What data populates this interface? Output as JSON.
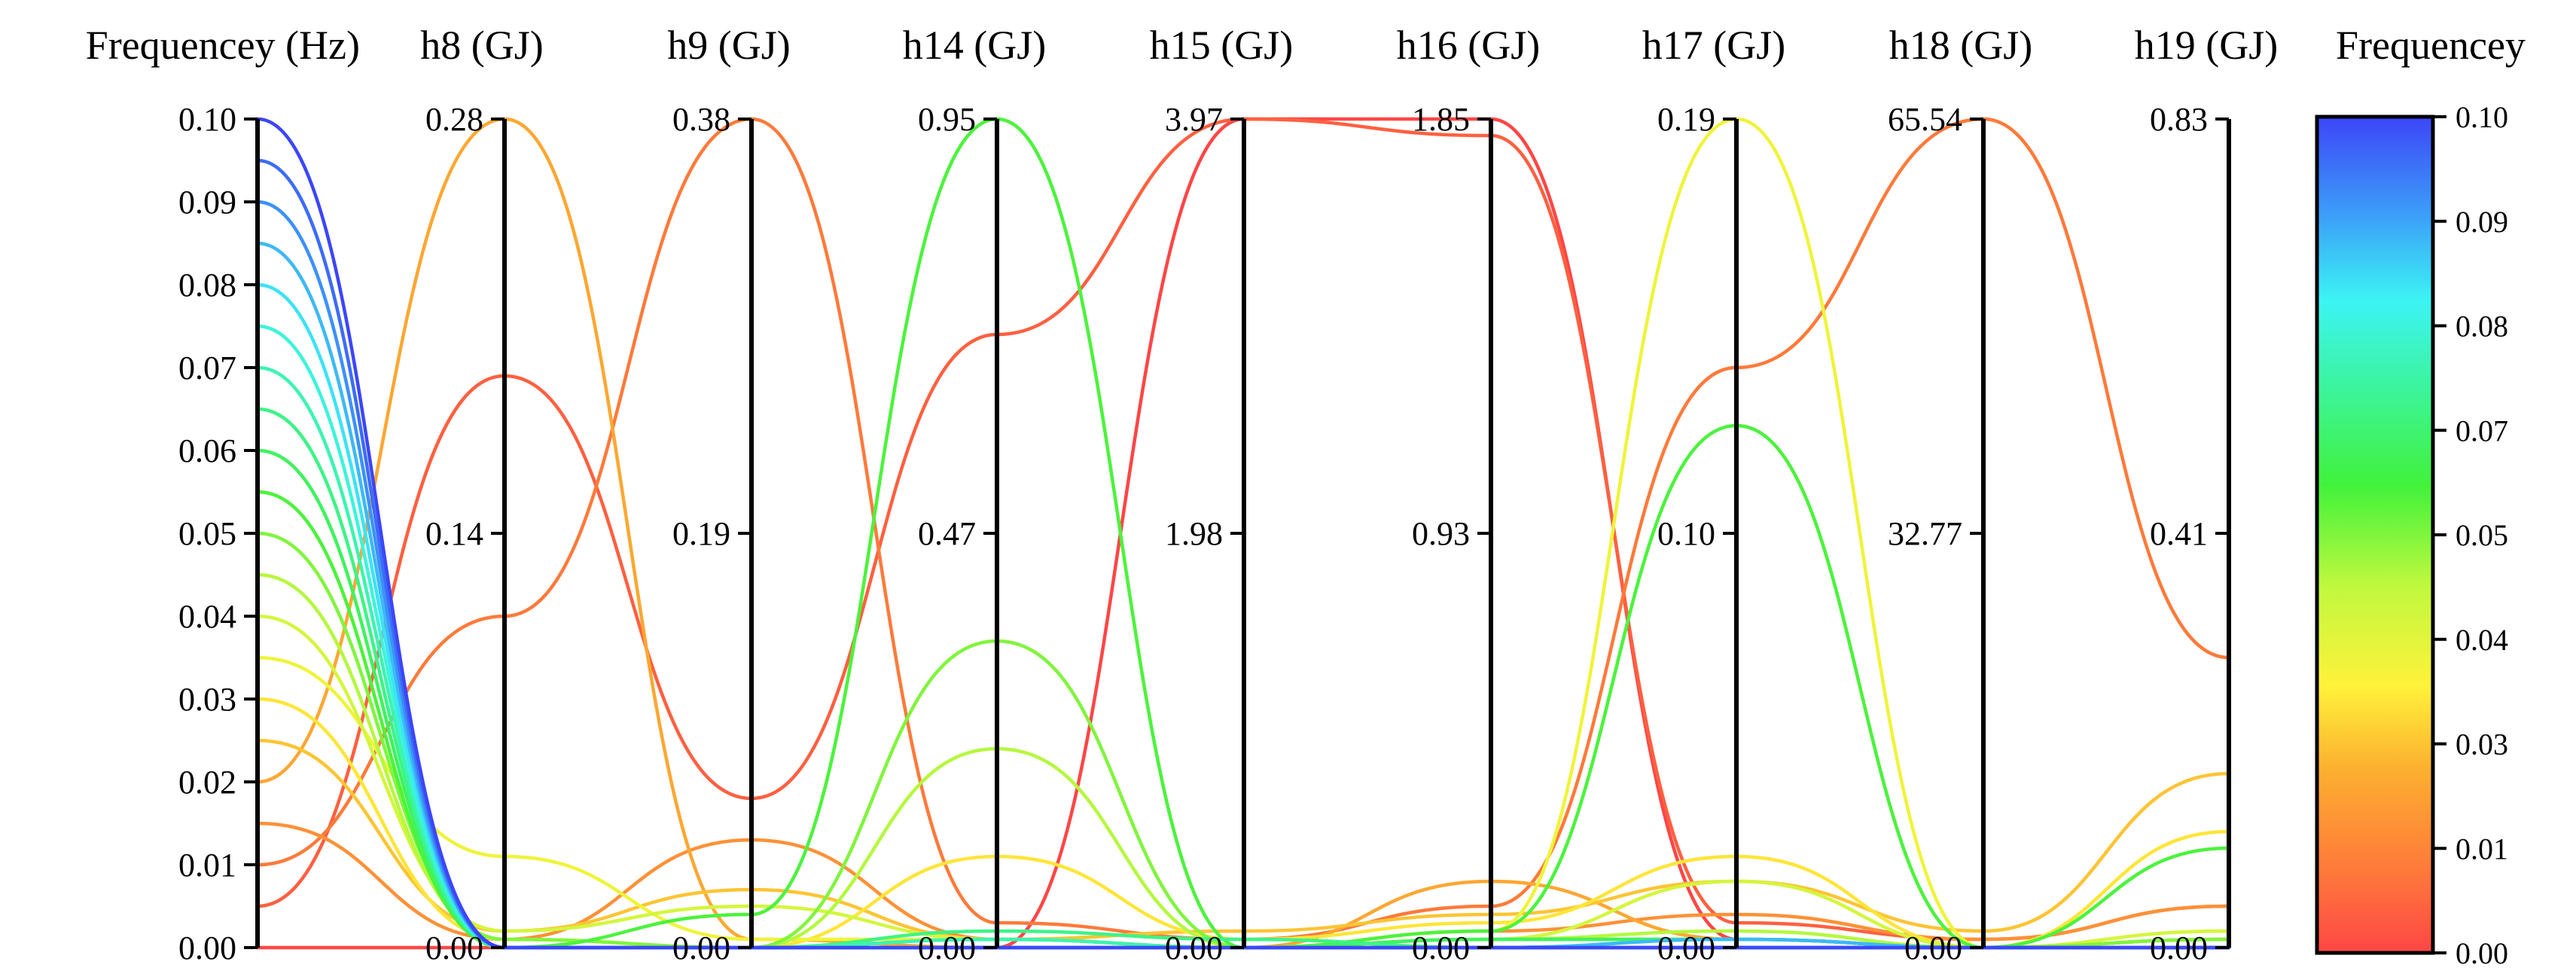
{
  "chart_data": {
    "type": "parallel-coordinates",
    "axes": [
      {
        "name": "Frequencey (Hz)",
        "min": 0.0,
        "max": 0.1,
        "ticks": [
          "0.00",
          "0.01",
          "0.02",
          "0.03",
          "0.04",
          "0.05",
          "0.06",
          "0.07",
          "0.08",
          "0.09",
          "0.10"
        ]
      },
      {
        "name": "h8 (GJ)",
        "min": 0.0,
        "max": 0.28,
        "ticks": [
          "0.00",
          "0.14",
          "0.28"
        ]
      },
      {
        "name": "h9 (GJ)",
        "min": 0.0,
        "max": 0.38,
        "ticks": [
          "0.00",
          "0.19",
          "0.38"
        ]
      },
      {
        "name": "h14 (GJ)",
        "min": 0.0,
        "max": 0.95,
        "ticks": [
          "0.00",
          "0.47",
          "0.95"
        ]
      },
      {
        "name": "h15 (GJ)",
        "min": 0.0,
        "max": 3.97,
        "ticks": [
          "0.00",
          "1.98",
          "3.97"
        ]
      },
      {
        "name": "h16 (GJ)",
        "min": 0.0,
        "max": 1.85,
        "ticks": [
          "0.00",
          "0.93",
          "1.85"
        ]
      },
      {
        "name": "h17 (GJ)",
        "min": 0.0,
        "max": 0.19,
        "ticks": [
          "0.00",
          "0.10",
          "0.19"
        ]
      },
      {
        "name": "h18 (GJ)",
        "min": 0.0,
        "max": 65.54,
        "ticks": [
          "0.00",
          "32.77",
          "65.54"
        ]
      },
      {
        "name": "h19 (GJ)",
        "min": 0.0,
        "max": 0.83,
        "ticks": [
          "0.00",
          "0.41",
          "0.83"
        ]
      }
    ],
    "colorbar": {
      "title": "Frequencey",
      "min": 0.0,
      "max": 0.1,
      "ticks": [
        "0.00",
        "0.01",
        "0.03",
        "0.04",
        "0.05",
        "0.07",
        "0.08",
        "0.09",
        "0.10"
      ],
      "colormap": "rainbow (red at low, blue at high)"
    },
    "series_normalized_note": "values per axis expressed as fraction of axis max (0 = bottom, 1 = top)",
    "series": [
      {
        "freq": 0.0,
        "values": [
          0.0,
          0.0,
          0.0,
          0.0,
          1.0,
          1.0,
          0.01,
          0.0,
          0.01
        ]
      },
      {
        "freq": 0.005,
        "values": [
          0.05,
          0.69,
          0.18,
          0.74,
          1.0,
          0.98,
          0.03,
          0.01,
          0.05
        ]
      },
      {
        "freq": 0.01,
        "values": [
          0.1,
          0.4,
          1.0,
          0.03,
          0.01,
          0.05,
          0.7,
          1.0,
          0.35
        ]
      },
      {
        "freq": 0.015,
        "values": [
          0.15,
          0.01,
          0.13,
          0.01,
          0.0,
          0.02,
          0.04,
          0.01,
          0.05
        ]
      },
      {
        "freq": 0.02,
        "values": [
          0.2,
          1.0,
          0.01,
          0.0,
          0.0,
          0.08,
          0.01,
          0.0,
          0.01
        ]
      },
      {
        "freq": 0.025,
        "values": [
          0.25,
          0.02,
          0.07,
          0.01,
          0.02,
          0.04,
          0.08,
          0.02,
          0.21
        ]
      },
      {
        "freq": 0.03,
        "values": [
          0.3,
          0.01,
          0.0,
          0.11,
          0.01,
          0.03,
          0.11,
          0.0,
          0.14
        ]
      },
      {
        "freq": 0.035,
        "values": [
          0.35,
          0.11,
          0.01,
          0.01,
          0.0,
          0.02,
          1.0,
          0.0,
          0.02
        ]
      },
      {
        "freq": 0.04,
        "values": [
          0.4,
          0.02,
          0.05,
          0.01,
          0.0,
          0.01,
          0.08,
          0.0,
          0.02
        ]
      },
      {
        "freq": 0.045,
        "values": [
          0.45,
          0.01,
          0.0,
          0.24,
          0.0,
          0.01,
          0.02,
          0.0,
          0.01
        ]
      },
      {
        "freq": 0.05,
        "values": [
          0.5,
          0.01,
          0.0,
          0.37,
          0.0,
          0.01,
          0.01,
          0.0,
          0.01
        ]
      },
      {
        "freq": 0.055,
        "values": [
          0.55,
          0.0,
          0.04,
          1.0,
          0.0,
          0.02,
          0.63,
          0.0,
          0.12
        ]
      },
      {
        "freq": 0.06,
        "values": [
          0.6,
          0.0,
          0.0,
          0.01,
          0.0,
          0.01,
          0.01,
          0.0,
          0.0
        ]
      },
      {
        "freq": 0.065,
        "values": [
          0.65,
          0.0,
          0.0,
          0.02,
          0.01,
          0.0,
          0.0,
          0.0,
          0.0
        ]
      },
      {
        "freq": 0.07,
        "values": [
          0.7,
          0.0,
          0.0,
          0.01,
          0.0,
          0.0,
          0.01,
          0.0,
          0.0
        ]
      },
      {
        "freq": 0.075,
        "values": [
          0.75,
          0.0,
          0.0,
          0.0,
          0.0,
          0.0,
          0.0,
          0.0,
          0.0
        ]
      },
      {
        "freq": 0.08,
        "values": [
          0.8,
          0.0,
          0.0,
          0.0,
          0.0,
          0.0,
          0.0,
          0.0,
          0.0
        ]
      },
      {
        "freq": 0.085,
        "values": [
          0.85,
          0.0,
          0.0,
          0.0,
          0.0,
          0.0,
          0.01,
          0.0,
          0.0
        ]
      },
      {
        "freq": 0.09,
        "values": [
          0.9,
          0.0,
          0.0,
          0.0,
          0.0,
          0.0,
          0.0,
          0.0,
          0.0
        ]
      },
      {
        "freq": 0.095,
        "values": [
          0.95,
          0.0,
          0.0,
          0.0,
          0.0,
          0.0,
          0.0,
          0.0,
          0.0
        ]
      },
      {
        "freq": 0.1,
        "values": [
          1.0,
          0.0,
          0.0,
          0.0,
          0.0,
          0.0,
          0.0,
          0.0,
          0.0
        ]
      }
    ]
  }
}
